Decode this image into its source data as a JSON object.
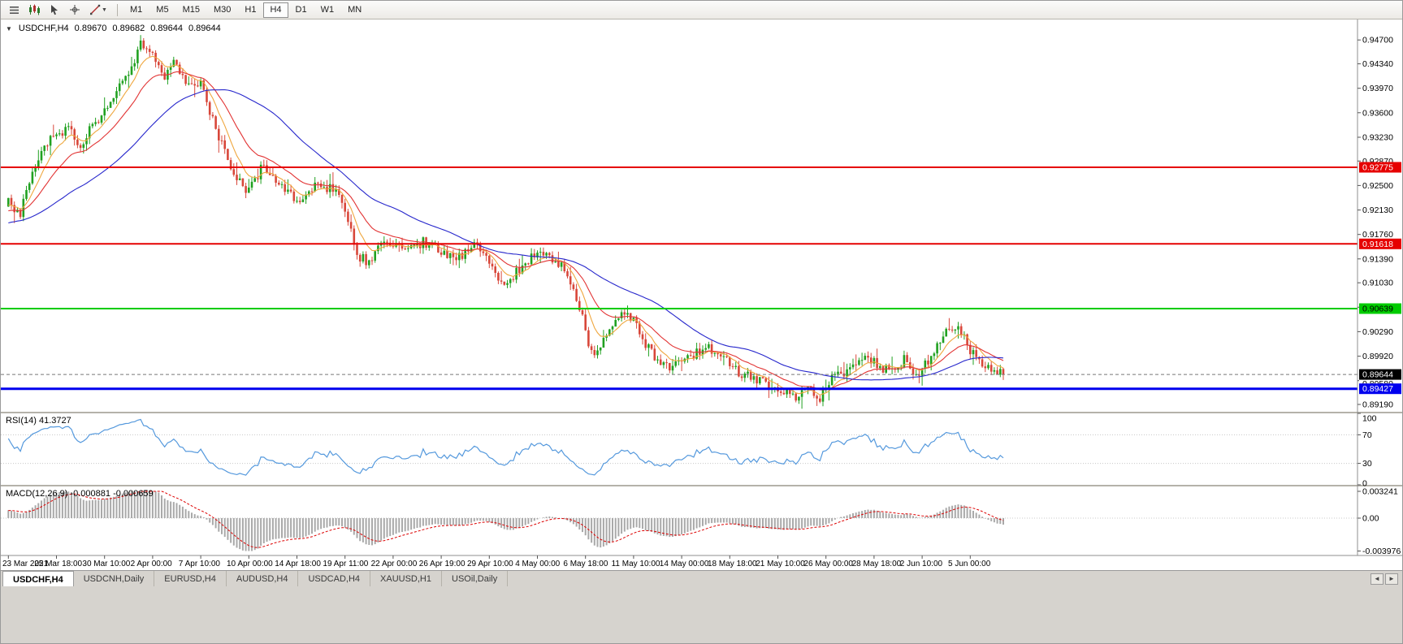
{
  "window": {
    "bg_color": "#d6d3ce"
  },
  "toolbar": {
    "icon_buttons": [
      "menu-icon",
      "chart-type-icon",
      "cursor-icon",
      "crosshair-icon",
      "draw-tools-icon"
    ],
    "timeframes": [
      "M1",
      "M5",
      "M15",
      "M30",
      "H1",
      "H4",
      "D1",
      "W1",
      "MN"
    ],
    "active_timeframe": "H4"
  },
  "chart_title": {
    "collapse_arrow": "▼",
    "symbol": "USDCHF,H4",
    "open": "0.89670",
    "high": "0.89682",
    "low": "0.89644",
    "close": "0.89644"
  },
  "chart_data": {
    "type": "candlestick",
    "symbol": "USDCHF",
    "period": "H4",
    "up_color": "#21a121",
    "down_color": "#d8473a",
    "seed": 7,
    "bars_count": 332,
    "price_axis": {
      "top_price": 0.9501,
      "bottom_price": 0.8908,
      "ticks": [
        "0.94700",
        "0.94340",
        "0.93970",
        "0.93600",
        "0.93230",
        "0.92870",
        "0.92500",
        "0.92130",
        "0.91760",
        "0.91390",
        "0.91030",
        "0.90660",
        "0.90290",
        "0.89920",
        "0.89550",
        "0.89190"
      ]
    },
    "time_axis": {
      "bars_per_label": 16,
      "labels": [
        "23 Mar 2021",
        "25 Mar 18:00",
        "30 Mar 10:00",
        "2 Apr 00:00",
        "7 Apr 10:00",
        "10 Apr 00:00",
        "14 Apr 18:00",
        "19 Apr 11:00",
        "22 Apr 00:00",
        "26 Apr 19:00",
        "29 Apr 10:00",
        "4 May 00:00",
        "6 May 18:00",
        "11 May 10:00",
        "14 May 00:00",
        "18 May 18:00",
        "21 May 10:00",
        "26 May 00:00",
        "28 May 18:00",
        "2 Jun 10:00",
        "5 Jun 00:00"
      ]
    },
    "price_path": [
      [
        -60,
        0.915
      ],
      [
        -44,
        0.9168
      ],
      [
        -28,
        0.9185
      ],
      [
        -12,
        0.9206
      ],
      [
        0,
        0.9225
      ],
      [
        4,
        0.9208
      ],
      [
        8,
        0.9272
      ],
      [
        14,
        0.9318
      ],
      [
        20,
        0.9338
      ],
      [
        24,
        0.9312
      ],
      [
        30,
        0.9352
      ],
      [
        36,
        0.9392
      ],
      [
        40,
        0.9418
      ],
      [
        44,
        0.9462
      ],
      [
        48,
        0.9444
      ],
      [
        52,
        0.9415
      ],
      [
        55,
        0.9438
      ],
      [
        60,
        0.9398
      ],
      [
        64,
        0.9406
      ],
      [
        70,
        0.9322
      ],
      [
        76,
        0.9258
      ],
      [
        80,
        0.924
      ],
      [
        85,
        0.9282
      ],
      [
        90,
        0.9252
      ],
      [
        96,
        0.9226
      ],
      [
        102,
        0.925
      ],
      [
        108,
        0.9244
      ],
      [
        112,
        0.9214
      ],
      [
        116,
        0.9142
      ],
      [
        120,
        0.9136
      ],
      [
        126,
        0.917
      ],
      [
        132,
        0.915
      ],
      [
        138,
        0.9164
      ],
      [
        144,
        0.915
      ],
      [
        150,
        0.9142
      ],
      [
        156,
        0.9164
      ],
      [
        160,
        0.913
      ],
      [
        164,
        0.9102
      ],
      [
        170,
        0.9122
      ],
      [
        176,
        0.9154
      ],
      [
        182,
        0.9136
      ],
      [
        186,
        0.912
      ],
      [
        190,
        0.9066
      ],
      [
        194,
        0.8996
      ],
      [
        198,
        0.9012
      ],
      [
        204,
        0.9058
      ],
      [
        208,
        0.9044
      ],
      [
        214,
        0.8996
      ],
      [
        220,
        0.8976
      ],
      [
        226,
        0.899
      ],
      [
        232,
        0.9006
      ],
      [
        238,
        0.8986
      ],
      [
        244,
        0.8966
      ],
      [
        250,
        0.8954
      ],
      [
        256,
        0.8946
      ],
      [
        262,
        0.8932
      ],
      [
        266,
        0.8946
      ],
      [
        270,
        0.893
      ],
      [
        274,
        0.8956
      ],
      [
        280,
        0.8976
      ],
      [
        286,
        0.8988
      ],
      [
        292,
        0.8972
      ],
      [
        298,
        0.8986
      ],
      [
        302,
        0.8964
      ],
      [
        306,
        0.8982
      ],
      [
        312,
        0.9028
      ],
      [
        316,
        0.904
      ],
      [
        320,
        0.8998
      ],
      [
        326,
        0.8976
      ],
      [
        331,
        0.8964
      ]
    ],
    "levels": [
      {
        "price": 0.92775,
        "label": "0.92775",
        "color": "#e60000",
        "text_color": "#ffffff",
        "width": 2
      },
      {
        "price": 0.91618,
        "label": "0.91618",
        "color": "#e60000",
        "text_color": "#ffffff",
        "width": 2
      },
      {
        "price": 0.90639,
        "label": "0.90639",
        "color": "#00cc00",
        "text_color": "#000000",
        "width": 2
      },
      {
        "price": 0.89427,
        "label": "0.89427",
        "color": "#0000ee",
        "text_color": "#ffffff",
        "width": 3
      }
    ],
    "current_price": {
      "value": 0.89644,
      "label": "0.89644",
      "box_color": "#000000",
      "text_color": "#ffffff",
      "secondary_label": "0.89580"
    },
    "moving_averages": [
      {
        "name": "ma-fast",
        "type": "ema",
        "period": 8,
        "color": "#efa73f"
      },
      {
        "name": "ma-mid",
        "type": "ema",
        "period": 20,
        "color": "#e23434"
      },
      {
        "name": "ma-slow",
        "type": "sma",
        "period": 48,
        "color": "#2727cc"
      }
    ],
    "indicators": {
      "rsi": {
        "label": "RSI(14) 41.3727",
        "period": 14,
        "color": "#5599dd",
        "level_lines": [
          70,
          30
        ],
        "axis_ticks": [
          "100",
          "70",
          "30",
          "0"
        ],
        "min": 0,
        "max": 100
      },
      "macd": {
        "label": "MACD(12,26,9) -0.000881 -0.000659",
        "fast": 12,
        "slow": 26,
        "signal": 9,
        "histogram_color": "#a9a9a9",
        "signal_color": "#dd0000",
        "axis_ticks": [
          "0.003241",
          "0.00",
          "-0.003976"
        ],
        "max": 0.003241,
        "min": -0.003976
      }
    }
  },
  "tab_bar": {
    "tabs": [
      "USDCHF,H4",
      "USDCNH,Daily",
      "EURUSD,H4",
      "AUDUSD,H4",
      "USDCAD,H4",
      "XAUUSD,H1",
      "USOil,Daily"
    ],
    "active_tab": "USDCHF,H4",
    "scroll_left": "◄",
    "scroll_right": "►"
  }
}
